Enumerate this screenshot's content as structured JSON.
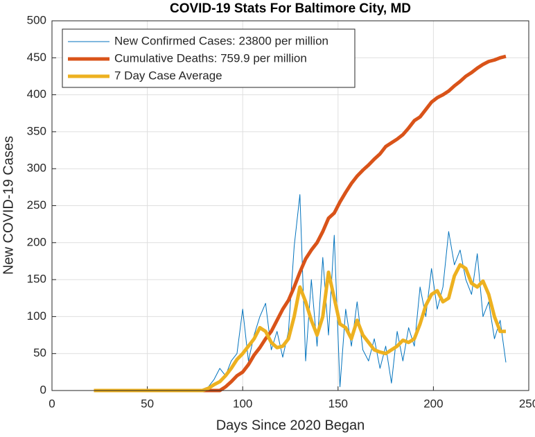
{
  "chart_data": {
    "type": "line",
    "title": "COVID-19 Stats For Baltimore City, MD",
    "xlabel": "Days Since 2020 Began",
    "ylabel": "New COVID-19 Cases",
    "x": [
      22,
      25,
      28,
      31,
      34,
      37,
      40,
      43,
      46,
      49,
      52,
      55,
      58,
      61,
      64,
      67,
      70,
      73,
      76,
      79,
      82,
      85,
      88,
      91,
      94,
      97,
      100,
      103,
      106,
      109,
      112,
      115,
      118,
      121,
      124,
      127,
      130,
      133,
      136,
      139,
      142,
      145,
      148,
      151,
      154,
      157,
      160,
      163,
      166,
      169,
      172,
      175,
      178,
      181,
      184,
      187,
      190,
      193,
      196,
      199,
      202,
      205,
      208,
      211,
      214,
      217,
      220,
      223,
      226,
      229,
      232,
      235,
      238
    ],
    "series": [
      {
        "name": "New Confirmed Cases: 23800 per million",
        "color": "#0072bd",
        "width": 1,
        "values": [
          0,
          0,
          0,
          0,
          0,
          0,
          0,
          0,
          0,
          0,
          0,
          0,
          0,
          0,
          0,
          0,
          0,
          0,
          0,
          2,
          5,
          15,
          30,
          20,
          40,
          50,
          110,
          40,
          75,
          100,
          118,
          55,
          80,
          45,
          80,
          195,
          265,
          40,
          150,
          60,
          180,
          75,
          210,
          5,
          110,
          60,
          120,
          55,
          40,
          70,
          30,
          60,
          10,
          80,
          40,
          85,
          60,
          140,
          100,
          165,
          110,
          140,
          215,
          170,
          190,
          150,
          130,
          185,
          100,
          120,
          70,
          95,
          38
        ]
      },
      {
        "name": "Cumulative Deaths: 759.9 per million",
        "color": "#d95319",
        "width": 5,
        "values": [
          0,
          0,
          0,
          0,
          0,
          0,
          0,
          0,
          0,
          0,
          0,
          0,
          0,
          0,
          0,
          0,
          0,
          0,
          0,
          0,
          0,
          0,
          0,
          5,
          12,
          20,
          25,
          35,
          48,
          58,
          70,
          80,
          95,
          110,
          122,
          140,
          160,
          178,
          190,
          200,
          215,
          233,
          240,
          255,
          268,
          280,
          290,
          298,
          305,
          313,
          320,
          330,
          335,
          340,
          346,
          355,
          365,
          370,
          380,
          390,
          396,
          400,
          405,
          412,
          418,
          425,
          430,
          436,
          441,
          445,
          447,
          450,
          452
        ]
      },
      {
        "name": "7 Day Case Average",
        "color": "#edb120",
        "width": 5,
        "values": [
          0,
          0,
          0,
          0,
          0,
          0,
          0,
          0,
          0,
          0,
          0,
          0,
          0,
          0,
          0,
          0,
          0,
          0,
          0,
          0,
          3,
          8,
          12,
          20,
          30,
          42,
          50,
          60,
          70,
          85,
          80,
          65,
          58,
          60,
          70,
          100,
          140,
          120,
          95,
          75,
          100,
          160,
          125,
          90,
          85,
          70,
          95,
          75,
          65,
          55,
          52,
          50,
          55,
          60,
          68,
          65,
          70,
          90,
          115,
          130,
          135,
          120,
          125,
          155,
          170,
          165,
          145,
          140,
          148,
          130,
          100,
          80,
          80
        ]
      }
    ],
    "xlim": [
      0,
      250
    ],
    "xticks": [
      0,
      50,
      100,
      150,
      200,
      250
    ],
    "ylim": [
      0,
      500
    ],
    "yticks": [
      0,
      50,
      100,
      150,
      200,
      250,
      300,
      350,
      400,
      450,
      500
    ],
    "grid": true,
    "legend": "northwest"
  }
}
